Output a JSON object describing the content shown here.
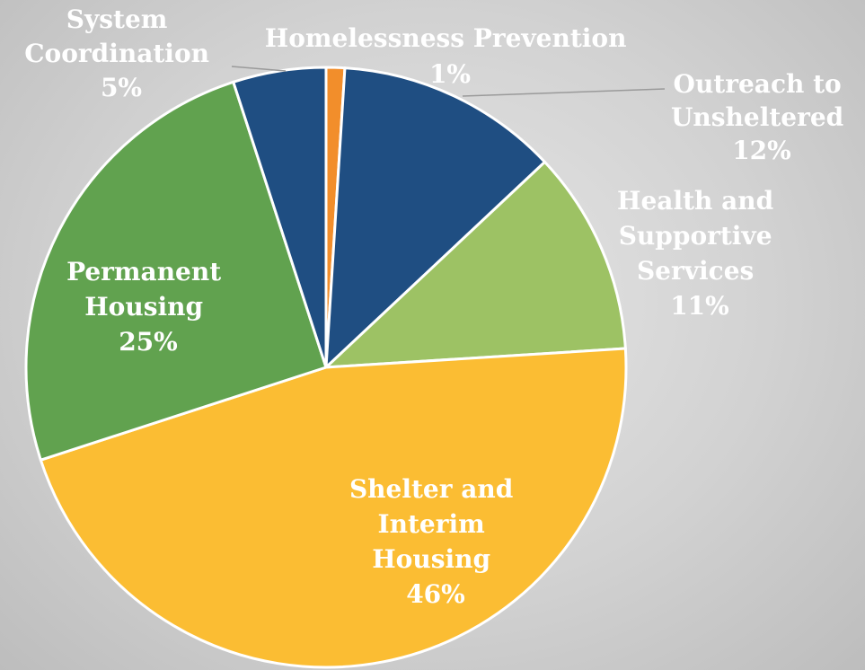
{
  "chart_data": {
    "type": "pie",
    "title": "",
    "slices": [
      {
        "name": "Homelessness Prevention",
        "lines": [
          "Homelessness Prevention"
        ],
        "pct_label": "1%",
        "value": 1,
        "color": "#f28e2b"
      },
      {
        "name": "Outreach to Unsheltered",
        "lines": [
          "Outreach to",
          "Unsheltered"
        ],
        "pct_label": "12%",
        "value": 12,
        "color": "#1f4e82"
      },
      {
        "name": "Health and Supportive Services",
        "lines": [
          "Health and",
          "Supportive",
          "Services"
        ],
        "pct_label": "11%",
        "value": 11,
        "color": "#9dc264"
      },
      {
        "name": "Shelter and Interim Housing",
        "lines": [
          "Shelter and",
          "Interim",
          "Housing"
        ],
        "pct_label": "46%",
        "value": 46,
        "color": "#fbbd33"
      },
      {
        "name": "Permanent Housing",
        "lines": [
          "Permanent",
          "Housing"
        ],
        "pct_label": "25%",
        "value": 25,
        "color": "#61a24f"
      },
      {
        "name": "System Coordination",
        "lines": [
          "System",
          "Coordination"
        ],
        "pct_label": "5%",
        "value": 5,
        "color": "#1f4e82"
      }
    ]
  }
}
